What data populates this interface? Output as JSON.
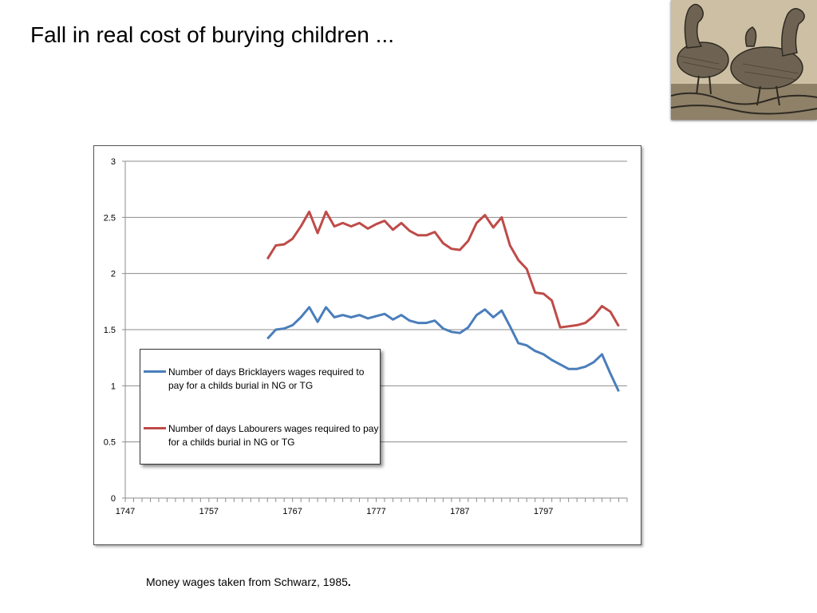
{
  "slide": {
    "title": "Fall in real cost of burying children ...",
    "footnote": "Money wages taken from Schwarz, 1985",
    "footnote_end": "."
  },
  "decoration": {
    "image_icon": "ducks-engraving-icon"
  },
  "chart_data": {
    "type": "line",
    "title": "",
    "xlabel": "",
    "ylabel": "",
    "xlim": [
      1747,
      1807
    ],
    "ylim": [
      0,
      3
    ],
    "x_ticks": [
      1747,
      1757,
      1767,
      1777,
      1787,
      1797
    ],
    "y_ticks": [
      0,
      0.5,
      1,
      1.5,
      2,
      2.5,
      3
    ],
    "grid": "horizontal",
    "legend": "inside-lower-left",
    "series": [
      {
        "name": "Number of days Bricklayers wages required to pay for a childs burial in NG or TG",
        "color": "#4a7ebb",
        "x": [
          1764,
          1765,
          1766,
          1767,
          1768,
          1769,
          1770,
          1771,
          1772,
          1773,
          1774,
          1775,
          1776,
          1777,
          1778,
          1779,
          1780,
          1781,
          1782,
          1783,
          1784,
          1785,
          1786,
          1787,
          1788,
          1789,
          1790,
          1791,
          1792,
          1793,
          1794,
          1795,
          1796,
          1797,
          1798,
          1799,
          1800,
          1801,
          1802,
          1803,
          1804,
          1805,
          1806
        ],
        "values": [
          1.42,
          1.5,
          1.51,
          1.54,
          1.61,
          1.7,
          1.57,
          1.7,
          1.61,
          1.63,
          1.61,
          1.63,
          1.6,
          1.62,
          1.64,
          1.59,
          1.63,
          1.58,
          1.56,
          1.56,
          1.58,
          1.51,
          1.48,
          1.47,
          1.52,
          1.63,
          1.68,
          1.61,
          1.67,
          1.53,
          1.38,
          1.36,
          1.31,
          1.28,
          1.23,
          1.19,
          1.15,
          1.15,
          1.17,
          1.21,
          1.28,
          1.11,
          0.95
        ]
      },
      {
        "name": "Number of days Labourers wages required to pay for a childs burial in NG or TG",
        "color": "#be4b48",
        "x": [
          1764,
          1765,
          1766,
          1767,
          1768,
          1769,
          1770,
          1771,
          1772,
          1773,
          1774,
          1775,
          1776,
          1777,
          1778,
          1779,
          1780,
          1781,
          1782,
          1783,
          1784,
          1785,
          1786,
          1787,
          1788,
          1789,
          1790,
          1791,
          1792,
          1793,
          1794,
          1795,
          1796,
          1797,
          1798,
          1799,
          1800,
          1801,
          1802,
          1803,
          1804,
          1805,
          1806
        ],
        "values": [
          2.13,
          2.25,
          2.26,
          2.31,
          2.42,
          2.55,
          2.36,
          2.55,
          2.42,
          2.45,
          2.42,
          2.45,
          2.4,
          2.44,
          2.47,
          2.39,
          2.45,
          2.38,
          2.34,
          2.34,
          2.37,
          2.27,
          2.22,
          2.21,
          2.29,
          2.45,
          2.52,
          2.41,
          2.5,
          2.25,
          2.12,
          2.04,
          1.83,
          1.82,
          1.76,
          1.52,
          1.53,
          1.54,
          1.56,
          1.62,
          1.71,
          1.66,
          1.53
        ]
      }
    ]
  }
}
